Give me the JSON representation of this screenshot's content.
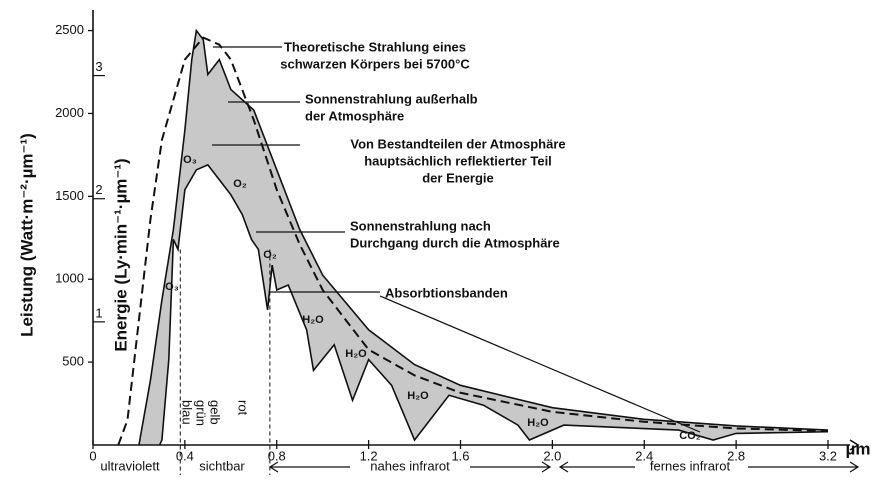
{
  "chart_data": {
    "type": "line",
    "y_label": "Leistung (Watt·m⁻²·µm⁻¹)",
    "y2_label": "Energie (Ly·min⁻¹·µm⁻¹)",
    "x_unit": "µm",
    "xlim": [
      0,
      3.2
    ],
    "xticks": [
      0,
      0.4,
      0.8,
      1.2,
      1.6,
      {
        "value": 2,
        "label": "2.0"
      },
      2.4,
      2.8,
      3.2
    ],
    "ylim": [
      0,
      2600
    ],
    "yticks": [
      500,
      1000,
      1500,
      2000,
      2500
    ],
    "y2lim": [
      0,
      3.5
    ],
    "y2ticks": [
      1,
      2,
      3
    ],
    "series": [
      {
        "color": "#111111",
        "dashed": true,
        "x": [
          0.11,
          0.15,
          0.25,
          0.3,
          0.4,
          0.48,
          0.55,
          0.6,
          0.7,
          0.8,
          0.9,
          1.0,
          1.2,
          1.4,
          1.6,
          2.0,
          2.4,
          2.8,
          3.2
        ],
        "values": [
          0,
          150,
          1360,
          1840,
          2325,
          2458,
          2415,
          2325,
          1960,
          1540,
          1210,
          935,
          575,
          420,
          315,
          200,
          140,
          100,
          85
        ]
      },
      {
        "color": "#111111",
        "fill": "#c8c8c8",
        "x": [
          0.2,
          0.25,
          0.3,
          0.35,
          0.4,
          0.43,
          0.45,
          0.48,
          0.5,
          0.55,
          0.6,
          0.7,
          0.8,
          0.9,
          1.0,
          1.2,
          1.4,
          1.6,
          2.0,
          2.4,
          2.8,
          3.2
        ],
        "values": [
          0,
          390,
          875,
          1300,
          1900,
          2325,
          2500,
          2445,
          2235,
          2325,
          2145,
          2020,
          1660,
          1300,
          1025,
          695,
          485,
          360,
          225,
          155,
          115,
          90
        ]
      },
      {
        "color": "#111111",
        "fill": "#ffffff",
        "x": [
          0.29,
          0.3,
          0.33,
          0.35,
          0.37,
          0.4,
          0.45,
          0.5,
          0.55,
          0.6,
          0.65,
          0.69,
          0.72,
          0.76,
          0.78,
          0.8,
          0.85,
          0.93,
          0.96,
          1.05,
          1.13,
          1.2,
          1.3,
          1.4,
          1.55,
          1.7,
          1.85,
          1.9,
          2.05,
          2.3,
          2.55,
          2.7,
          2.8,
          3.2
        ],
        "values": [
          0,
          30,
          515,
          1240,
          1180,
          1540,
          1660,
          1690,
          1600,
          1510,
          1390,
          1240,
          1180,
          815,
          1085,
          935,
          965,
          695,
          450,
          605,
          270,
          515,
          360,
          30,
          300,
          240,
          120,
          30,
          120,
          105,
          90,
          30,
          70,
          80
        ]
      }
    ],
    "boundaries": [
      0.38,
      0.77
    ],
    "annotations": [
      {
        "lines": [
          "Theoretische Strahlung eines",
          "schwarzen Körpers bei 5700°C"
        ]
      },
      {
        "lines": [
          "Sonnenstrahlung außerhalb",
          "der Atmosphäre"
        ]
      },
      {
        "lines": [
          "Von Bestandteilen der Atmosphäre",
          "hauptsächlich reflektierter Teil",
          "der Energie"
        ]
      },
      {
        "lines": [
          "Sonnenstrahlung nach",
          "Durchgang durch die Atmosphäre"
        ]
      },
      {
        "lines": [
          "Absorbtionsbanden"
        ]
      }
    ],
    "molecules": [
      "O₃",
      "O₂",
      "O₂",
      "O₃",
      "H₂O",
      "H₂O",
      "H₂O",
      "H₂O",
      "CO₂"
    ],
    "colors_visible": [
      "blau",
      "grün",
      "gelb",
      "rot"
    ],
    "regions": [
      "ultraviolett",
      "sichtbar",
      "nahes infrarot",
      "fernes infrarot"
    ]
  }
}
